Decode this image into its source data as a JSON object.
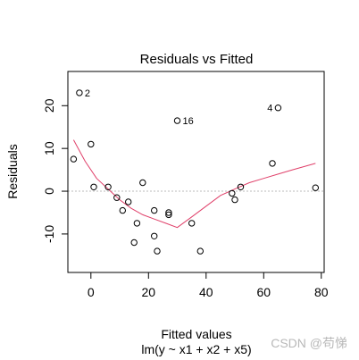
{
  "chart_data": {
    "type": "scatter",
    "title": "Residuals vs Fitted",
    "xlabel": "Fitted values",
    "subtitle": "lm(y ~ x1 + x2 + x5)",
    "ylabel": "Residuals",
    "xlim": [
      -8,
      81
    ],
    "ylim": [
      -19,
      28
    ],
    "xticks": [
      0,
      20,
      40,
      60,
      80
    ],
    "yticks": [
      -10,
      0,
      10,
      20
    ],
    "points": [
      {
        "x": -4.0,
        "y": 23.0,
        "label": "2"
      },
      {
        "x": -6.0,
        "y": 7.5
      },
      {
        "x": 0.0,
        "y": 11.0
      },
      {
        "x": 1.0,
        "y": 1.0
      },
      {
        "x": 6.0,
        "y": 1.0
      },
      {
        "x": 9.0,
        "y": -1.5
      },
      {
        "x": 11.0,
        "y": -4.5
      },
      {
        "x": 13.0,
        "y": -2.5
      },
      {
        "x": 15.0,
        "y": -12.0
      },
      {
        "x": 16.0,
        "y": -7.5
      },
      {
        "x": 18.0,
        "y": 2.0
      },
      {
        "x": 22.0,
        "y": -4.5
      },
      {
        "x": 22.0,
        "y": -10.5
      },
      {
        "x": 23.0,
        "y": -14.0
      },
      {
        "x": 27.0,
        "y": -5.0
      },
      {
        "x": 27.0,
        "y": -5.5
      },
      {
        "x": 30.0,
        "y": 16.5,
        "label": "16"
      },
      {
        "x": 35.0,
        "y": -7.5
      },
      {
        "x": 38.0,
        "y": -14.0
      },
      {
        "x": 49.0,
        "y": -0.5
      },
      {
        "x": 50.0,
        "y": -2.0
      },
      {
        "x": 52.0,
        "y": 1.0
      },
      {
        "x": 63.0,
        "y": 6.5
      },
      {
        "x": 65.0,
        "y": 19.5,
        "label": "4"
      },
      {
        "x": 78.0,
        "y": 0.8
      }
    ],
    "smooth": [
      {
        "x": -6,
        "y": 12.0
      },
      {
        "x": -2,
        "y": 7.0
      },
      {
        "x": 2,
        "y": 3.0
      },
      {
        "x": 6,
        "y": 0.5
      },
      {
        "x": 10,
        "y": -2.0
      },
      {
        "x": 14,
        "y": -4.0
      },
      {
        "x": 18,
        "y": -5.5
      },
      {
        "x": 22,
        "y": -6.5
      },
      {
        "x": 26,
        "y": -7.5
      },
      {
        "x": 30,
        "y": -8.5
      },
      {
        "x": 35,
        "y": -6.0
      },
      {
        "x": 40,
        "y": -3.5
      },
      {
        "x": 45,
        "y": -1.0
      },
      {
        "x": 50,
        "y": 0.5
      },
      {
        "x": 55,
        "y": 2.0
      },
      {
        "x": 60,
        "y": 3.0
      },
      {
        "x": 65,
        "y": 4.0
      },
      {
        "x": 70,
        "y": 5.0
      },
      {
        "x": 78,
        "y": 6.5
      }
    ],
    "reference_line_y": 0,
    "colors": {
      "points": "#000000",
      "smooth": "#e0406a",
      "reference": "#bbbbbb"
    }
  },
  "watermark": "CSDN @苟悌"
}
